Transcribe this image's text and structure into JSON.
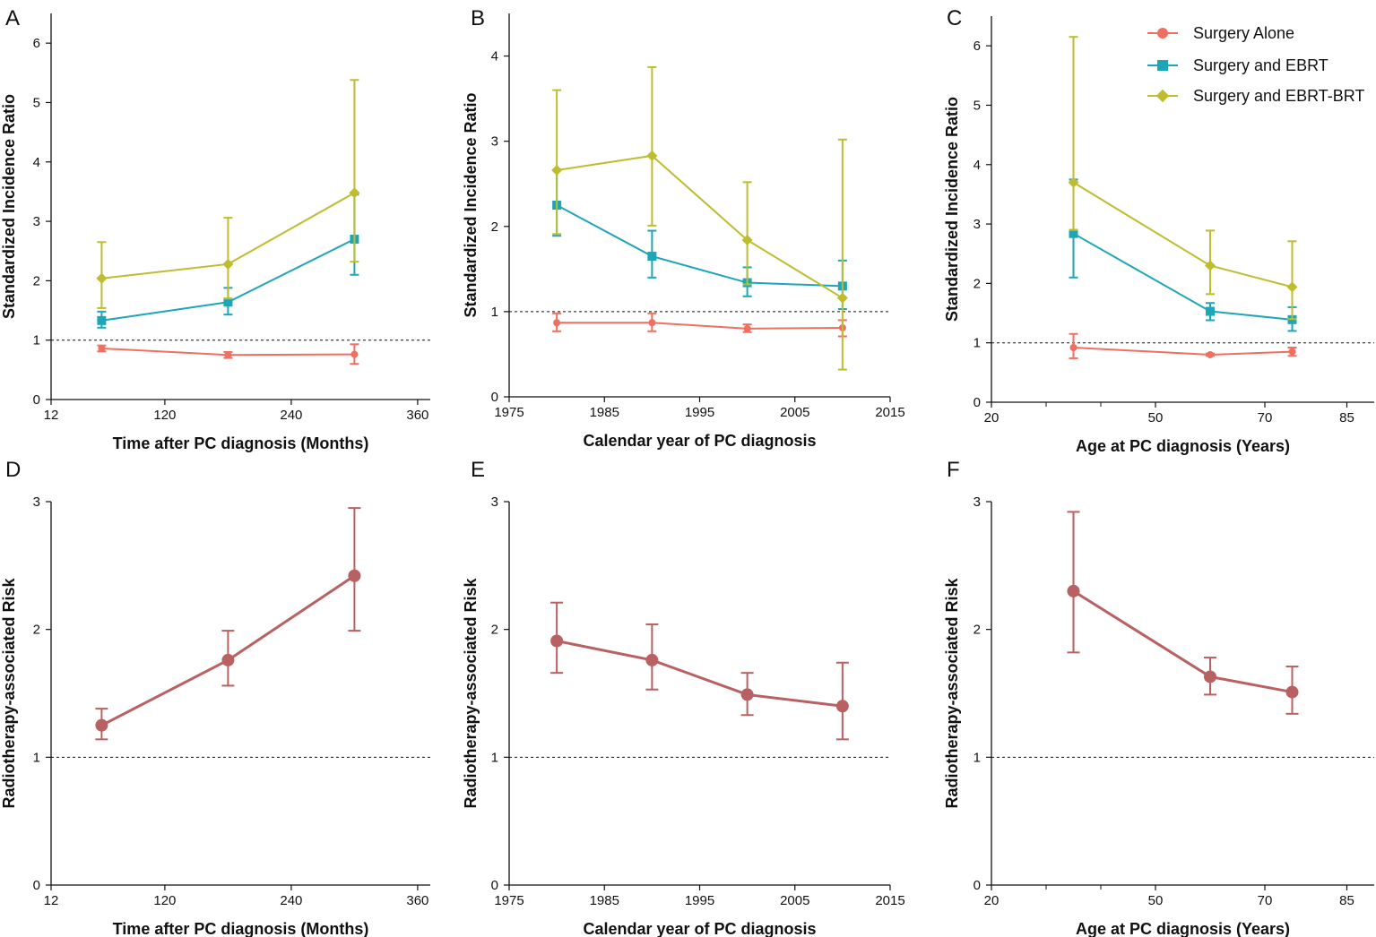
{
  "colors": {
    "surgery_alone": "#EF6F61",
    "surgery_ebrt": "#1DA6B8",
    "surgery_ebrt_brt": "#BDBD2E",
    "risk": "#B96162",
    "axis": "#111111",
    "reference": "#111111"
  },
  "legend": {
    "placement": "top-right of panel C",
    "items": [
      {
        "label": "Surgery Alone",
        "series": "surgery_alone",
        "marker": "circle"
      },
      {
        "label": "Surgery and EBRT",
        "series": "surgery_ebrt",
        "marker": "square"
      },
      {
        "label": "Surgery and EBRT-BRT",
        "series": "surgery_ebrt_brt",
        "marker": "diamond"
      }
    ]
  },
  "chart_data": [
    {
      "panel": "A",
      "type": "line",
      "xlabel": "Time after PC diagnosis (Months)",
      "ylabel": "Standardized Incidence Ratio",
      "xlim": [
        12,
        372
      ],
      "xticks": [
        12,
        120,
        240,
        360
      ],
      "xtick_labels": [
        "12",
        "120",
        "240",
        "360"
      ],
      "ylim": [
        0,
        6.5
      ],
      "yticks": [
        0,
        1,
        2,
        3,
        4,
        5,
        6
      ],
      "ytick_labels": [
        "0",
        "1",
        "2",
        "3",
        "4",
        "5",
        "6"
      ],
      "reference_line": 1,
      "series": [
        {
          "name": "Surgery Alone",
          "color_key": "surgery_alone",
          "marker": "circle",
          "x": [
            60,
            180,
            300
          ],
          "values": [
            0.86,
            0.75,
            0.76
          ],
          "lower": [
            0.81,
            0.7,
            0.6
          ],
          "upper": [
            0.91,
            0.8,
            0.93
          ]
        },
        {
          "name": "Surgery and EBRT",
          "color_key": "surgery_ebrt",
          "marker": "square",
          "x": [
            60,
            180,
            300
          ],
          "values": [
            1.33,
            1.64,
            2.7
          ],
          "lower": [
            1.21,
            1.43,
            2.1
          ],
          "upper": [
            1.48,
            1.88,
            3.45
          ]
        },
        {
          "name": "Surgery and EBRT-BRT",
          "color_key": "surgery_ebrt_brt",
          "marker": "diamond",
          "x": [
            60,
            180,
            300
          ],
          "values": [
            2.04,
            2.28,
            3.48
          ],
          "lower": [
            1.54,
            1.7,
            2.32
          ],
          "upper": [
            2.65,
            3.06,
            5.38
          ]
        }
      ]
    },
    {
      "panel": "B",
      "type": "line",
      "xlabel": "Calendar year of PC diagnosis",
      "ylabel": "Standardized Incidence Ratio",
      "xlim": [
        1975,
        2015
      ],
      "xticks": [
        1975,
        1985,
        1995,
        2005,
        2015
      ],
      "xtick_labels": [
        "1975",
        "1985",
        "1995",
        "2005",
        "2015"
      ],
      "ylim": [
        0,
        4.5
      ],
      "yticks": [
        0,
        1,
        2,
        3,
        4
      ],
      "ytick_labels": [
        "0",
        "1",
        "2",
        "3",
        "4"
      ],
      "reference_line": 1,
      "series": [
        {
          "name": "Surgery Alone",
          "color_key": "surgery_alone",
          "marker": "circle",
          "x": [
            1980,
            1990,
            2000,
            2010
          ],
          "values": [
            0.87,
            0.87,
            0.8,
            0.81
          ],
          "lower": [
            0.77,
            0.77,
            0.76,
            0.71
          ],
          "upper": [
            0.98,
            0.98,
            0.85,
            0.9
          ]
        },
        {
          "name": "Surgery and EBRT",
          "color_key": "surgery_ebrt",
          "marker": "square",
          "x": [
            1980,
            1990,
            2000,
            2010
          ],
          "values": [
            2.25,
            1.65,
            1.34,
            1.3
          ],
          "lower": [
            1.89,
            1.4,
            1.18,
            1.03
          ],
          "upper": [
            2.66,
            1.95,
            1.52,
            1.6
          ]
        },
        {
          "name": "Surgery and EBRT-BRT",
          "color_key": "surgery_ebrt_brt",
          "marker": "diamond",
          "x": [
            1980,
            1990,
            2000,
            2010
          ],
          "values": [
            2.66,
            2.83,
            1.84,
            1.16
          ],
          "lower": [
            1.91,
            2.01,
            1.32,
            0.32
          ],
          "upper": [
            3.6,
            3.87,
            2.52,
            3.02
          ]
        }
      ]
    },
    {
      "panel": "C",
      "type": "line",
      "xlabel": "Age at PC diagnosis (Years)",
      "ylabel": "Standardized Incidence Ratio",
      "xlim": [
        20,
        90
      ],
      "xticks": [
        20,
        50,
        70,
        85
      ],
      "xtick_labels": [
        "20",
        "50",
        "70",
        "85"
      ],
      "minor_xticks": [
        30,
        40
      ],
      "ylim": [
        0,
        6.5
      ],
      "yticks": [
        0,
        1,
        2,
        3,
        4,
        5,
        6
      ],
      "ytick_labels": [
        "0",
        "1",
        "2",
        "3",
        "4",
        "5",
        "6"
      ],
      "reference_line": 1,
      "series": [
        {
          "name": "Surgery Alone",
          "color_key": "surgery_alone",
          "marker": "circle",
          "x": [
            35,
            60,
            75
          ],
          "values": [
            0.92,
            0.8,
            0.85
          ],
          "lower": [
            0.74,
            0.78,
            0.78
          ],
          "upper": [
            1.15,
            0.82,
            0.92
          ]
        },
        {
          "name": "Surgery and EBRT",
          "color_key": "surgery_ebrt",
          "marker": "square",
          "x": [
            35,
            60,
            75
          ],
          "values": [
            2.84,
            1.53,
            1.39
          ],
          "lower": [
            2.1,
            1.38,
            1.2
          ],
          "upper": [
            3.75,
            1.67,
            1.6
          ]
        },
        {
          "name": "Surgery and EBRT-BRT",
          "color_key": "surgery_ebrt_brt",
          "marker": "diamond",
          "x": [
            35,
            60,
            75
          ],
          "values": [
            3.7,
            2.3,
            1.94
          ],
          "lower": [
            2.9,
            1.82,
            1.4
          ],
          "upper": [
            6.15,
            2.89,
            2.71
          ]
        }
      ]
    },
    {
      "panel": "D",
      "type": "line",
      "xlabel": "Time after PC diagnosis (Months)",
      "ylabel": "Radiotherapy-associated Risk",
      "xlim": [
        12,
        372
      ],
      "xticks": [
        12,
        120,
        240,
        360
      ],
      "xtick_labels": [
        "12",
        "120",
        "240",
        "360"
      ],
      "ylim": [
        0,
        3
      ],
      "yticks": [
        0,
        1,
        2,
        3
      ],
      "ytick_labels": [
        "0",
        "1",
        "2",
        "3"
      ],
      "reference_line": 1,
      "series": [
        {
          "name": "Radiotherapy-associated Risk",
          "color_key": "risk",
          "marker": "circle",
          "x": [
            60,
            180,
            300
          ],
          "values": [
            1.25,
            1.76,
            2.42
          ],
          "lower": [
            1.14,
            1.56,
            1.99
          ],
          "upper": [
            1.38,
            1.99,
            2.95
          ]
        }
      ]
    },
    {
      "panel": "E",
      "type": "line",
      "xlabel": "Calendar year of PC diagnosis",
      "ylabel": "Radiotherapy-associated Risk",
      "xlim": [
        1975,
        2015
      ],
      "xticks": [
        1975,
        1985,
        1995,
        2005,
        2015
      ],
      "xtick_labels": [
        "1975",
        "1985",
        "1995",
        "2005",
        "2015"
      ],
      "ylim": [
        0,
        3
      ],
      "yticks": [
        0,
        1,
        2,
        3
      ],
      "ytick_labels": [
        "0",
        "1",
        "2",
        "3"
      ],
      "reference_line": 1,
      "series": [
        {
          "name": "Radiotherapy-associated Risk",
          "color_key": "risk",
          "marker": "circle",
          "x": [
            1980,
            1990,
            2000,
            2010
          ],
          "values": [
            1.91,
            1.76,
            1.49,
            1.4
          ],
          "lower": [
            1.66,
            1.53,
            1.33,
            1.14
          ],
          "upper": [
            2.21,
            2.04,
            1.66,
            1.74
          ]
        }
      ]
    },
    {
      "panel": "F",
      "type": "line",
      "xlabel": "Age at PC diagnosis (Years)",
      "ylabel": "Radiotherapy-associated Risk",
      "xlim": [
        20,
        90
      ],
      "xticks": [
        20,
        50,
        70,
        85
      ],
      "xtick_labels": [
        "20",
        "50",
        "70",
        "85"
      ],
      "minor_xticks": [
        30,
        40
      ],
      "ylim": [
        0,
        3
      ],
      "yticks": [
        0,
        1,
        2,
        3
      ],
      "ytick_labels": [
        "0",
        "1",
        "2",
        "3"
      ],
      "reference_line": 1,
      "series": [
        {
          "name": "Radiotherapy-associated Risk",
          "color_key": "risk",
          "marker": "circle",
          "x": [
            35,
            60,
            75
          ],
          "values": [
            2.3,
            1.63,
            1.51
          ],
          "lower": [
            1.82,
            1.49,
            1.34
          ],
          "upper": [
            2.92,
            1.78,
            1.71
          ]
        }
      ]
    }
  ]
}
